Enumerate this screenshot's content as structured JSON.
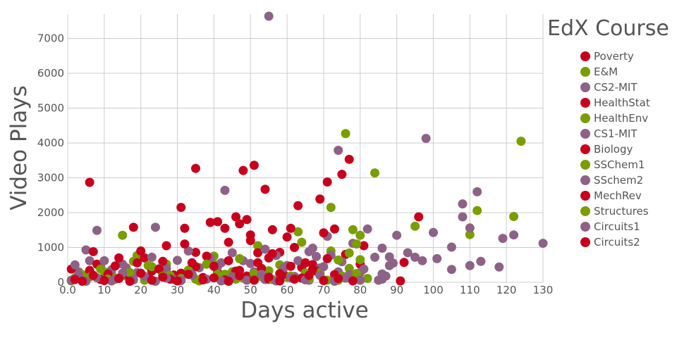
{
  "chart_data": {
    "type": "scatter",
    "title": "",
    "xlabel": "Days active",
    "ylabel": "Video Plays",
    "xlim": [
      0,
      130
    ],
    "ylim": [
      0,
      7700
    ],
    "x_ticks": [
      "0.0",
      "10",
      "20",
      "30",
      "40",
      "50",
      "60",
      "70",
      "80",
      "90",
      "100",
      "110",
      "120",
      "130"
    ],
    "y_ticks": [
      "0",
      "1000",
      "2000",
      "3000",
      "4000",
      "5000",
      "6000",
      "7000"
    ],
    "grid": true,
    "legend": {
      "title": "EdX Course",
      "position": "right"
    },
    "colors": {
      "red": "#c8001e",
      "green": "#7a9e00",
      "purple": "#8e6287"
    },
    "series": [
      {
        "name": "Poverty",
        "color": "#c8001e",
        "points": [
          [
            6,
            2870
          ],
          [
            35,
            3270
          ],
          [
            48,
            3210
          ],
          [
            51,
            3360
          ],
          [
            54,
            2670
          ],
          [
            31,
            2150
          ],
          [
            43,
            1550
          ],
          [
            47,
            1680
          ],
          [
            50,
            1360
          ],
          [
            56,
            1510
          ],
          [
            63,
            2200
          ],
          [
            69,
            2390
          ],
          [
            71,
            2880
          ],
          [
            75,
            3100
          ],
          [
            77,
            3530
          ],
          [
            60,
            1300
          ]
        ]
      },
      {
        "name": "E&M",
        "color": "#7a9e00",
        "points": [
          [
            15,
            1350
          ],
          [
            19,
            770
          ],
          [
            27,
            520
          ],
          [
            40,
            750
          ],
          [
            45,
            300
          ],
          [
            52,
            1050
          ],
          [
            63,
            1450
          ],
          [
            72,
            2150
          ],
          [
            76,
            4270
          ],
          [
            84,
            3140
          ],
          [
            95,
            1610
          ],
          [
            110,
            1370
          ],
          [
            112,
            2060
          ],
          [
            122,
            1890
          ],
          [
            124,
            4050
          ],
          [
            78,
            1510
          ]
        ]
      },
      {
        "name": "CS2-MIT",
        "color": "#8e6287",
        "points": [
          [
            5,
            930
          ],
          [
            8,
            1490
          ],
          [
            24,
            1580
          ],
          [
            43,
            2640
          ],
          [
            55,
            7640
          ],
          [
            74,
            3790
          ],
          [
            98,
            4130
          ],
          [
            108,
            2250
          ],
          [
            112,
            2600
          ],
          [
            108,
            1880
          ],
          [
            110,
            1560
          ],
          [
            86,
            980
          ],
          [
            90,
            1350
          ],
          [
            93,
            850
          ],
          [
            97,
            620
          ],
          [
            100,
            1430
          ],
          [
            105,
            1010
          ],
          [
            113,
            600
          ],
          [
            118,
            440
          ],
          [
            119,
            1260
          ],
          [
            122,
            1360
          ],
          [
            130,
            1120
          ],
          [
            82,
            1530
          ],
          [
            88,
            730
          ],
          [
            95,
            720
          ],
          [
            101,
            680
          ],
          [
            105,
            370
          ],
          [
            110,
            480
          ],
          [
            71,
            1320
          ],
          [
            67,
            980
          ]
        ]
      },
      {
        "name": "HealthStat",
        "color": "#c8001e",
        "points": [
          [
            7,
            880
          ],
          [
            18,
            1580
          ],
          [
            21,
            700
          ],
          [
            27,
            1050
          ],
          [
            32,
            1550
          ],
          [
            35,
            860
          ],
          [
            39,
            1720
          ],
          [
            41,
            1740
          ],
          [
            44,
            1150
          ],
          [
            46,
            1880
          ],
          [
            49,
            1800
          ],
          [
            52,
            850
          ],
          [
            55,
            700
          ],
          [
            58,
            860
          ],
          [
            61,
            1550
          ],
          [
            64,
            430
          ],
          [
            67,
            510
          ],
          [
            70,
            1420
          ],
          [
            73,
            1530
          ],
          [
            76,
            800
          ],
          [
            80,
            520
          ],
          [
            92,
            570
          ],
          [
            96,
            1880
          ],
          [
            91,
            40
          ]
        ]
      },
      {
        "name": "HealthEnv",
        "color": "#7a9e00",
        "points": [
          [
            2,
            130
          ],
          [
            5,
            60
          ],
          [
            10,
            300
          ],
          [
            12,
            250
          ],
          [
            16,
            180
          ],
          [
            22,
            480
          ],
          [
            26,
            220
          ],
          [
            30,
            150
          ],
          [
            35,
            90
          ],
          [
            40,
            520
          ],
          [
            44,
            200
          ],
          [
            48,
            120
          ],
          [
            55,
            330
          ],
          [
            60,
            140
          ],
          [
            65,
            270
          ],
          [
            72,
            900
          ],
          [
            77,
            400
          ],
          [
            80,
            650
          ],
          [
            74,
            60
          ]
        ]
      },
      {
        "name": "CS1-MIT",
        "color": "#8e6287",
        "points": [
          [
            3,
            300
          ],
          [
            6,
            620
          ],
          [
            9,
            450
          ],
          [
            12,
            360
          ],
          [
            15,
            520
          ],
          [
            19,
            280
          ],
          [
            23,
            720
          ],
          [
            27,
            400
          ],
          [
            30,
            630
          ],
          [
            33,
            900
          ],
          [
            36,
            420
          ],
          [
            39,
            700
          ],
          [
            42,
            560
          ],
          [
            45,
            850
          ],
          [
            48,
            620
          ],
          [
            51,
            300
          ],
          [
            54,
            950
          ],
          [
            57,
            770
          ],
          [
            60,
            480
          ],
          [
            63,
            620
          ],
          [
            66,
            880
          ],
          [
            69,
            410
          ],
          [
            72,
            780
          ],
          [
            75,
            590
          ],
          [
            78,
            1120
          ],
          [
            81,
            380
          ],
          [
            84,
            720
          ],
          [
            87,
            180
          ],
          [
            89,
            550
          ],
          [
            77,
            220
          ]
        ]
      },
      {
        "name": "Biology",
        "color": "#c8001e",
        "points": [
          [
            1,
            380
          ],
          [
            4,
            120
          ],
          [
            8,
            520
          ],
          [
            11,
            240
          ],
          [
            14,
            700
          ],
          [
            17,
            150
          ],
          [
            20,
            900
          ],
          [
            23,
            320
          ],
          [
            26,
            600
          ],
          [
            29,
            210
          ],
          [
            32,
            1100
          ],
          [
            35,
            450
          ],
          [
            38,
            750
          ],
          [
            41,
            280
          ],
          [
            44,
            620
          ],
          [
            47,
            340
          ],
          [
            50,
            1200
          ],
          [
            53,
            400
          ],
          [
            56,
            820
          ],
          [
            59,
            230
          ],
          [
            62,
            1000
          ],
          [
            65,
            560
          ],
          [
            68,
            320
          ],
          [
            71,
            680
          ],
          [
            81,
            1050
          ]
        ]
      },
      {
        "name": "SSChem1",
        "color": "#7a9e00",
        "points": [
          [
            4,
            220
          ],
          [
            9,
            380
          ],
          [
            14,
            120
          ],
          [
            18,
            600
          ],
          [
            23,
            450
          ],
          [
            28,
            200
          ],
          [
            33,
            350
          ],
          [
            38,
            520
          ],
          [
            43,
            230
          ],
          [
            47,
            680
          ],
          [
            53,
            160
          ],
          [
            58,
            500
          ],
          [
            64,
            1150
          ],
          [
            69,
            280
          ],
          [
            74,
            640
          ],
          [
            79,
            1100
          ],
          [
            80,
            1350
          ],
          [
            77,
            840
          ]
        ]
      },
      {
        "name": "SSchem2",
        "color": "#8e6287",
        "points": [
          [
            2,
            500
          ],
          [
            7,
            190
          ],
          [
            10,
            620
          ],
          [
            13,
            90
          ],
          [
            16,
            420
          ],
          [
            21,
            140
          ],
          [
            25,
            390
          ],
          [
            29,
            80
          ],
          [
            34,
            230
          ],
          [
            37,
            120
          ],
          [
            41,
            460
          ],
          [
            46,
            180
          ],
          [
            50,
            540
          ],
          [
            54,
            80
          ],
          [
            59,
            410
          ],
          [
            62,
            170
          ],
          [
            66,
            60
          ],
          [
            70,
            450
          ],
          [
            74,
            300
          ],
          [
            79,
            190
          ],
          [
            80,
            280
          ],
          [
            85,
            60
          ],
          [
            88,
            480
          ],
          [
            86,
            240
          ],
          [
            68,
            740
          ]
        ]
      },
      {
        "name": "MechRev",
        "color": "#c8001e",
        "points": [
          [
            3,
            160
          ],
          [
            6,
            340
          ],
          [
            9,
            80
          ],
          [
            13,
            470
          ],
          [
            16,
            230
          ],
          [
            19,
            560
          ],
          [
            22,
            110
          ],
          [
            25,
            380
          ],
          [
            28,
            90
          ],
          [
            31,
            260
          ],
          [
            34,
            560
          ],
          [
            37,
            140
          ],
          [
            40,
            460
          ],
          [
            43,
            70
          ],
          [
            46,
            320
          ],
          [
            49,
            180
          ],
          [
            52,
            560
          ],
          [
            55,
            90
          ],
          [
            58,
            250
          ],
          [
            61,
            460
          ],
          [
            64,
            120
          ],
          [
            67,
            370
          ],
          [
            70,
            60
          ],
          [
            73,
            220
          ]
        ]
      },
      {
        "name": "Structures",
        "color": "#7a9e00",
        "points": [
          [
            1,
            40
          ],
          [
            6,
            150
          ],
          [
            11,
            90
          ],
          [
            17,
            280
          ],
          [
            21,
            60
          ],
          [
            26,
            180
          ],
          [
            31,
            110
          ],
          [
            36,
            40
          ],
          [
            41,
            230
          ],
          [
            46,
            90
          ],
          [
            51,
            250
          ],
          [
            56,
            80
          ],
          [
            61,
            180
          ],
          [
            66,
            100
          ],
          [
            71,
            60
          ],
          [
            75,
            180
          ],
          [
            79,
            250
          ],
          [
            82,
            110
          ]
        ]
      },
      {
        "name": "Circuits1",
        "color": "#8e6287",
        "points": [
          [
            1,
            60
          ],
          [
            3,
            210
          ],
          [
            5,
            30
          ],
          [
            8,
            130
          ],
          [
            12,
            40
          ],
          [
            15,
            260
          ],
          [
            18,
            70
          ],
          [
            21,
            170
          ],
          [
            24,
            30
          ],
          [
            27,
            120
          ],
          [
            31,
            50
          ],
          [
            34,
            210
          ],
          [
            38,
            90
          ],
          [
            42,
            40
          ],
          [
            45,
            160
          ],
          [
            49,
            60
          ],
          [
            53,
            230
          ],
          [
            57,
            40
          ],
          [
            61,
            130
          ],
          [
            65,
            70
          ],
          [
            69,
            200
          ],
          [
            73,
            30
          ],
          [
            76,
            120
          ],
          [
            80,
            60
          ],
          [
            86,
            90
          ]
        ]
      },
      {
        "name": "Circuits2",
        "color": "#c8001e",
        "points": [
          [
            2,
            80
          ],
          [
            4,
            30
          ],
          [
            7,
            200
          ],
          [
            10,
            50
          ],
          [
            14,
            110
          ],
          [
            17,
            30
          ],
          [
            20,
            260
          ],
          [
            23,
            60
          ],
          [
            26,
            150
          ],
          [
            30,
            40
          ],
          [
            33,
            230
          ],
          [
            37,
            70
          ],
          [
            40,
            130
          ],
          [
            44,
            30
          ],
          [
            47,
            190
          ],
          [
            51,
            60
          ],
          [
            55,
            150
          ],
          [
            58,
            40
          ],
          [
            62,
            90
          ],
          [
            66,
            200
          ],
          [
            70,
            50
          ],
          [
            74,
            110
          ],
          [
            78,
            40
          ]
        ]
      }
    ]
  }
}
